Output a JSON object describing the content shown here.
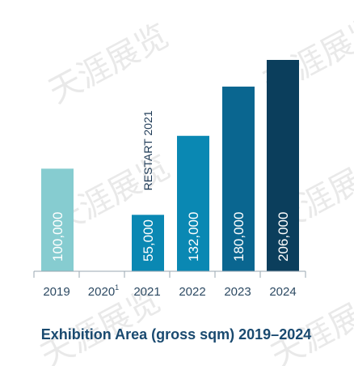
{
  "chart_data": {
    "type": "bar",
    "title": "Exhibition Area (gross sqm) 2019–2024",
    "categories": [
      "2019",
      "2020",
      "2021",
      "2022",
      "2023",
      "2024"
    ],
    "category_superscripts": [
      "",
      "1",
      "",
      "",
      "",
      ""
    ],
    "values": [
      100000,
      null,
      55000,
      132000,
      180000,
      206000
    ],
    "value_labels": [
      "100,000",
      "",
      "55,000",
      "132,000",
      "180,000",
      "206,000"
    ],
    "bar_colors": [
      "#86ccd0",
      "#ffffff",
      "#0a88b3",
      "#0a88b3",
      "#0a6690",
      "#0b3e5c"
    ],
    "annotations": [
      {
        "category": "2021",
        "text": "RESTART 2021"
      }
    ],
    "ylim": [
      0,
      215000
    ],
    "grid": false,
    "legend": "none"
  },
  "watermark": {
    "text": "天涯展览"
  }
}
